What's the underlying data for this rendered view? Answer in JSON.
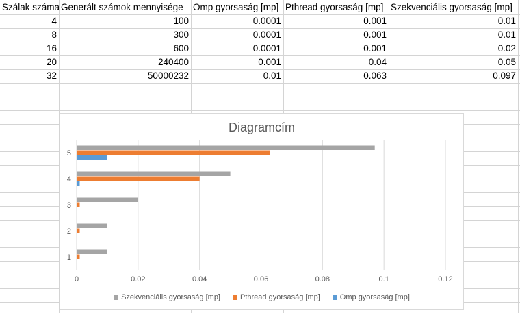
{
  "sheet": {
    "headers": [
      "Szálak száma",
      "Generált számok mennyisége",
      "Omp gyorsaság [mp]",
      "Pthread gyorsaság [mp]",
      "Szekvenciális gyorsaság [mp]"
    ],
    "rows": [
      [
        "4",
        "100",
        "0.0001",
        "0.001",
        "0.01"
      ],
      [
        "8",
        "300",
        "0.0001",
        "0.001",
        "0.01"
      ],
      [
        "16",
        "600",
        "0.0001",
        "0.001",
        "0.02"
      ],
      [
        "20",
        "240400",
        "0.001",
        "0.04",
        "0.05"
      ],
      [
        "32",
        "50000232",
        "0.01",
        "0.063",
        "0.097"
      ]
    ]
  },
  "chart_data": {
    "type": "bar",
    "orientation": "horizontal",
    "title": "Diagramcím",
    "categories": [
      "1",
      "2",
      "3",
      "4",
      "5"
    ],
    "series": [
      {
        "name": "Szekvenciális gyorsaság [mp]",
        "color": "#a5a5a5",
        "values": [
          0.01,
          0.01,
          0.02,
          0.05,
          0.097
        ]
      },
      {
        "name": "Pthread gyorsaság [mp]",
        "color": "#ed7d31",
        "values": [
          0.001,
          0.001,
          0.001,
          0.04,
          0.063
        ]
      },
      {
        "name": "Omp gyorsaság [mp]",
        "color": "#5b9bd5",
        "values": [
          0.0001,
          0.0001,
          0.0001,
          0.001,
          0.01
        ]
      }
    ],
    "xlim": [
      0,
      0.12
    ],
    "x_ticks": [
      "0",
      "0.02",
      "0.04",
      "0.06",
      "0.08",
      "0.1",
      "0.12"
    ],
    "grid": true,
    "legend_position": "bottom"
  }
}
